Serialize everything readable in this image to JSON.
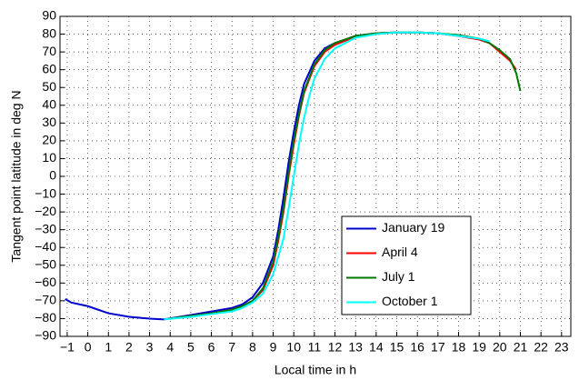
{
  "chart_data": {
    "type": "line",
    "x_label": "Local time in h",
    "y_label": "Tangent point latitude in deg N",
    "xlim": [
      -1.35,
      23.45
    ],
    "ylim": [
      -90,
      90
    ],
    "xticks": [
      {
        "value": -1,
        "label": "−1"
      },
      0,
      1,
      2,
      3,
      4,
      5,
      6,
      7,
      8,
      9,
      10,
      11,
      12,
      13,
      14,
      15,
      16,
      17,
      18,
      19,
      20,
      21,
      22,
      23
    ],
    "yticks": [
      {
        "value": -90,
        "label": "−90"
      },
      {
        "value": -80,
        "label": "−80"
      },
      {
        "value": -70,
        "label": "−70"
      },
      {
        "value": -60,
        "label": "−60"
      },
      {
        "value": -50,
        "label": "−50"
      },
      {
        "value": -40,
        "label": "−40"
      },
      {
        "value": -30,
        "label": "−30"
      },
      {
        "value": -20,
        "label": "−20"
      },
      {
        "value": -10,
        "label": "−10"
      },
      0,
      10,
      20,
      30,
      40,
      50,
      60,
      70,
      80,
      90
    ],
    "grid": true,
    "legend_position": "lower right",
    "series": [
      {
        "name": "January 19",
        "color": "#0000cc",
        "x": [
          -1.1,
          -0.8,
          0,
          1,
          2,
          3,
          3.7,
          5,
          6,
          7,
          7.5,
          8,
          8.5,
          9,
          9.25,
          9.5,
          9.75,
          10,
          10.25,
          10.5,
          11,
          11.5,
          12,
          13,
          14,
          15,
          16,
          17,
          18,
          19,
          19.5
        ],
        "values": [
          -69,
          -71,
          -73,
          -77,
          -79,
          -80,
          -80.5,
          -78,
          -76,
          -74,
          -72,
          -68,
          -60,
          -45,
          -30,
          -12,
          8,
          25,
          40,
          52,
          65,
          72,
          75,
          79,
          80.5,
          81,
          81,
          80.5,
          79,
          77,
          75
        ]
      },
      {
        "name": "April 4",
        "color": "#ff0000",
        "x": [
          4,
          5,
          6,
          7,
          7.5,
          8,
          8.5,
          9,
          9.25,
          9.5,
          9.75,
          10,
          10.25,
          10.5,
          11,
          11.5,
          12,
          13,
          14,
          15,
          16,
          17,
          18,
          19,
          19.5,
          20,
          20.5,
          20.8
        ],
        "values": [
          -80,
          -78.5,
          -77,
          -75,
          -73,
          -70,
          -64,
          -50,
          -36,
          -20,
          0,
          18,
          34,
          47,
          62,
          70,
          74,
          78.5,
          80,
          81,
          81,
          80.5,
          79,
          77,
          75,
          70,
          65,
          60
        ]
      },
      {
        "name": "July 1",
        "color": "#007700",
        "x": [
          4,
          5,
          6,
          7,
          7.5,
          8,
          8.5,
          9,
          9.25,
          9.5,
          9.75,
          10,
          10.25,
          10.5,
          11,
          11.5,
          12,
          13,
          14,
          15,
          16,
          17,
          18,
          19,
          19.5,
          20,
          20.5,
          20.8,
          21
        ],
        "values": [
          -80,
          -78.5,
          -77,
          -75,
          -73,
          -70,
          -63,
          -48,
          -34,
          -18,
          2,
          20,
          35,
          48,
          63,
          71,
          75,
          79,
          80.5,
          81,
          81,
          80.5,
          79.5,
          77.5,
          75,
          71,
          66,
          58,
          48
        ]
      },
      {
        "name": "October 1",
        "color": "#00ffff",
        "x": [
          3.7,
          5,
          6,
          7,
          7.5,
          8,
          8.5,
          9,
          9.5,
          9.75,
          10,
          10.25,
          10.5,
          10.75,
          11,
          11.5,
          12,
          13,
          14,
          15,
          16,
          17,
          18,
          19,
          19.5
        ],
        "values": [
          -80.5,
          -79,
          -77.5,
          -76,
          -74,
          -71,
          -66,
          -55,
          -35,
          -18,
          0,
          18,
          33,
          45,
          55,
          66,
          72,
          78,
          80,
          81,
          81,
          80.5,
          79,
          77.5,
          76
        ]
      }
    ]
  }
}
